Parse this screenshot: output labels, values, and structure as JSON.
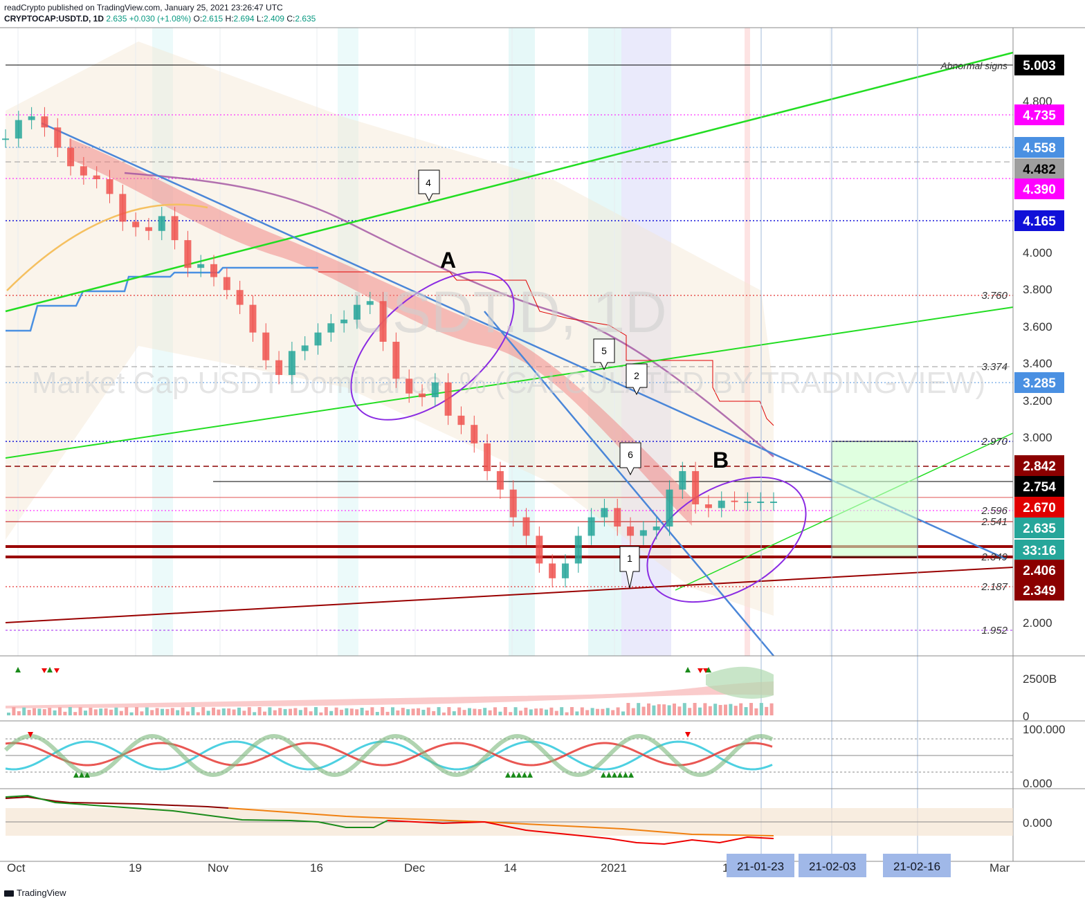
{
  "header": {
    "publisher": "readCrypto published on TradingView.com, January 25, 2021 23:26:47 UTC",
    "symbol": "CRYPTOCAP:USDT.D, 1D",
    "last": "2.635",
    "change": "+0.030 (+1.08%)",
    "o_label": "O:",
    "o": "2.615",
    "h_label": "H:",
    "h": "2.694",
    "l_label": "L:",
    "l": "2.409",
    "c_label": "C:",
    "c": "2.635"
  },
  "watermark": {
    "symbol": "USDT.D, 1D",
    "description": "Market Cap USDT Dominance, % (CALCULATED BY TRADINGVIEW)"
  },
  "annotations": {
    "wave_a": "A",
    "wave_b": "B",
    "abnormal": "Abnormal signs",
    "markers": [
      "4",
      "5",
      "2",
      "6",
      "1"
    ]
  },
  "footer": {
    "brand": "TradingView"
  },
  "colors": {
    "accent_up": "#26a69a",
    "accent_down": "#ef5350",
    "trend_blue": "#4a86d8",
    "trend_green": "#22dd22",
    "dark_red": "#990000",
    "purple": "#8a2be2",
    "magenta": "#ff00ff"
  },
  "chart_data": {
    "type": "line",
    "title": "CRYPTOCAP:USDT.D, 1D",
    "ylim": [
      1.8,
      5.2
    ],
    "x_ticks": [
      "Oct",
      "19",
      "Nov",
      "16",
      "Dec",
      "14",
      "2021",
      "1",
      "Mar"
    ],
    "x_highlight_dates": [
      "21-01-23",
      "21-02-03",
      "21-02-16"
    ],
    "price_axis_ticks": [
      "4.800",
      "4.000",
      "3.800",
      "3.600",
      "3.400",
      "3.200",
      "3.000",
      "2.000"
    ],
    "level_annotations": [
      "3.760",
      "3.374",
      "2.970",
      "2.596",
      "2.541",
      "2.349",
      "2.187",
      "1.952"
    ],
    "price_badges": [
      {
        "text": "5.003",
        "bg": "#000000"
      },
      {
        "text": "4.735",
        "bg": "#ff00ff"
      },
      {
        "text": "4.558",
        "bg": "#4a90e2"
      },
      {
        "text": "4.482",
        "bg": "#9e9e9e"
      },
      {
        "text": "4.390",
        "bg": "#ff00ff"
      },
      {
        "text": "4.165",
        "bg": "#1010d8"
      },
      {
        "text": "3.285",
        "bg": "#4a90e2"
      },
      {
        "text": "2.842",
        "bg": "#8b0000"
      },
      {
        "text": "2.754",
        "bg": "#000000"
      },
      {
        "text": "2.670",
        "bg": "#e00000"
      },
      {
        "text": "2.635",
        "bg": "#26a69a"
      },
      {
        "text": "33:16",
        "bg": "#26a69a"
      },
      {
        "text": "2.406",
        "bg": "#8b0000"
      },
      {
        "text": "2.349",
        "bg": "#8b0000"
      }
    ],
    "volume_axis": [
      "2500B",
      "0"
    ],
    "oscillator_axis": [
      "100.000",
      "0.000"
    ],
    "bottom_axis": [
      "0.000"
    ],
    "series": [
      {
        "x": [
          0,
          2,
          4,
          6,
          8,
          10,
          12,
          14,
          16,
          18,
          20,
          22,
          24,
          26,
          28,
          30,
          32,
          34,
          36,
          38,
          40,
          42,
          44,
          46,
          48,
          50,
          52,
          54,
          56,
          58,
          60,
          62,
          64,
          66,
          68,
          70,
          72,
          74,
          76,
          78,
          80,
          82,
          84,
          86,
          88,
          90,
          92,
          94,
          96,
          98,
          100,
          102,
          104,
          106,
          108,
          110,
          112,
          114,
          116,
          118
        ],
        "values": [
          4.6,
          4.7,
          4.72,
          4.66,
          4.55,
          4.45,
          4.4,
          4.38,
          4.3,
          4.15,
          4.12,
          4.1,
          4.18,
          4.05,
          3.9,
          3.92,
          3.85,
          3.78,
          3.7,
          3.55,
          3.4,
          3.32,
          3.45,
          3.48,
          3.55,
          3.6,
          3.62,
          3.7,
          3.72,
          3.5,
          3.3,
          3.22,
          3.2,
          3.28,
          3.1,
          3.05,
          2.95,
          2.8,
          2.7,
          2.55,
          2.45,
          2.3,
          2.22,
          2.3,
          2.45,
          2.55,
          2.6,
          2.5,
          2.45,
          2.48,
          2.5,
          2.7,
          2.8,
          2.62,
          2.6,
          2.64,
          2.635,
          2.635,
          2.635,
          2.635
        ]
      }
    ]
  }
}
